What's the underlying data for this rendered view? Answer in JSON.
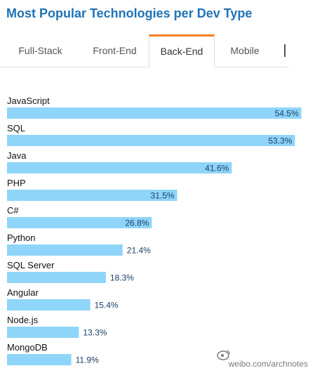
{
  "title": "Most Popular Technologies per Dev Type",
  "tabs": [
    "Full-Stack",
    "Front-End",
    "Back-End",
    "Mobile"
  ],
  "active_tab": "Back-End",
  "colors": {
    "bar": "#8fd5f9",
    "title": "#1f73b7",
    "active_tab_accent": "#f48024",
    "label_value": "#1b3f6b"
  },
  "chart_data": {
    "type": "bar",
    "orientation": "horizontal",
    "categories": [
      "JavaScript",
      "SQL",
      "Java",
      "PHP",
      "C#",
      "Python",
      "SQL Server",
      "Angular",
      "Node.js",
      "MongoDB"
    ],
    "values": [
      54.5,
      53.3,
      41.6,
      31.5,
      26.8,
      21.4,
      18.3,
      15.4,
      13.3,
      11.9
    ],
    "value_labels": [
      "54.5%",
      "53.3%",
      "41.6%",
      "31.5%",
      "26.8%",
      "21.4%",
      "18.3%",
      "15.4%",
      "13.3%",
      "11.9%"
    ],
    "unit": "%"
  },
  "watermark": "weibo.com/archnotes"
}
